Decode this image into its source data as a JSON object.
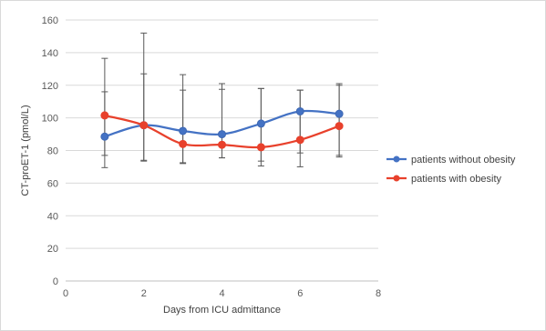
{
  "chart_data": {
    "type": "line",
    "title": "",
    "xlabel": "Days from ICU admittance",
    "ylabel": "CT-proET-1 (pmol/L)",
    "xlim": [
      0,
      8
    ],
    "ylim": [
      0,
      160
    ],
    "x_ticks": [
      "0",
      "2",
      "4",
      "6",
      "8"
    ],
    "y_ticks": [
      "0",
      "20",
      "40",
      "60",
      "80",
      "100",
      "120",
      "140",
      "160"
    ],
    "grid": "horizontal",
    "smooth": true,
    "legend_position": "right",
    "series": [
      {
        "name": "patients without obesity",
        "color": "#4472C4",
        "x": [
          1,
          2,
          3,
          4,
          5,
          6,
          7
        ],
        "y": [
          88.5,
          95.5,
          92,
          90,
          96.5,
          104,
          102.5
        ],
        "error_high": [
          116,
          127,
          117,
          117.5,
          118,
          117,
          120
        ],
        "error_low": [
          77,
          74,
          72.5,
          75.5,
          73.5,
          78.5,
          77
        ]
      },
      {
        "name": "patients with obesity",
        "color": "#E8412C",
        "x": [
          1,
          2,
          3,
          4,
          5,
          6,
          7
        ],
        "y": [
          101.5,
          95.5,
          84,
          83.5,
          82,
          86.5,
          95
        ],
        "error_high": [
          136.5,
          152,
          126.5,
          121,
          118,
          117,
          121
        ],
        "error_low": [
          69.5,
          73.5,
          72,
          75.5,
          70.5,
          70,
          76
        ]
      }
    ]
  }
}
